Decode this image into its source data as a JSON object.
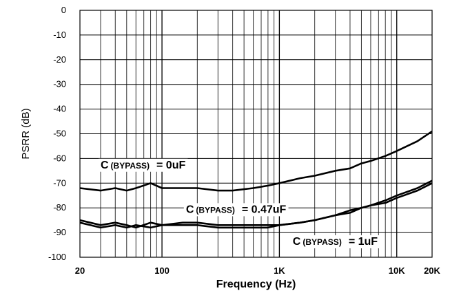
{
  "chart_data": {
    "type": "line",
    "xlabel": "Frequency (Hz)",
    "ylabel": "PSRR (dB)",
    "xscale": "log",
    "xlim": [
      20,
      20000
    ],
    "ylim": [
      -100,
      0
    ],
    "grid": true,
    "x_ticks": [
      {
        "value": 20,
        "label": "20"
      },
      {
        "value": 100,
        "label": "100"
      },
      {
        "value": 1000,
        "label": "1K"
      },
      {
        "value": 10000,
        "label": "10K"
      },
      {
        "value": 20000,
        "label": "20K"
      }
    ],
    "y_ticks": [
      0,
      -10,
      -20,
      -30,
      -40,
      -50,
      -60,
      -70,
      -80,
      -90,
      -100
    ],
    "series": [
      {
        "name": "C(BYPASS) = 0uF",
        "x": [
          20,
          30,
          40,
          50,
          60,
          80,
          100,
          150,
          200,
          300,
          400,
          600,
          800,
          1000,
          1500,
          2000,
          3000,
          4000,
          5000,
          6000,
          8000,
          10000,
          15000,
          20000
        ],
        "y": [
          -72,
          -73,
          -72,
          -73,
          -72,
          -70,
          -72,
          -72,
          -72,
          -73,
          -73,
          -72,
          -71,
          -70,
          -68,
          -67,
          -65,
          -64,
          -62,
          -61,
          -59,
          -57,
          -53,
          -49
        ]
      },
      {
        "name": "C(BYPASS) = 0.47uF",
        "x": [
          20,
          30,
          40,
          50,
          60,
          80,
          100,
          150,
          200,
          300,
          400,
          600,
          800,
          1000,
          1500,
          2000,
          3000,
          4000,
          5000,
          6000,
          8000,
          10000,
          15000,
          20000
        ],
        "y": [
          -85,
          -87,
          -86,
          -87,
          -88,
          -86,
          -87,
          -86,
          -86,
          -87,
          -87,
          -87,
          -87,
          -87,
          -86,
          -85,
          -83,
          -81,
          -80,
          -79,
          -77,
          -75,
          -72,
          -69
        ]
      },
      {
        "name": "C(BYPASS) = 1uF",
        "x": [
          20,
          30,
          40,
          50,
          60,
          80,
          100,
          150,
          200,
          300,
          400,
          600,
          800,
          1000,
          1500,
          2000,
          3000,
          4000,
          5000,
          6000,
          8000,
          10000,
          15000,
          20000
        ],
        "y": [
          -86,
          -88,
          -87,
          -88,
          -87,
          -88,
          -87,
          -87,
          -87,
          -88,
          -88,
          -88,
          -88,
          -87,
          -86,
          -85,
          -83,
          -82,
          -80,
          -79,
          -78,
          -76,
          -73,
          -70
        ]
      }
    ],
    "annotations": [
      {
        "id": "c0",
        "prefix": "C",
        "sub": "(BYPASS)",
        "suffix": "= 0uF",
        "at_x": 30,
        "at_y": -64
      },
      {
        "id": "c047",
        "prefix": "C",
        "sub": "(BYPASS)",
        "suffix": "= 0.47uF",
        "at_x": 160,
        "at_y": -82
      },
      {
        "id": "c1",
        "prefix": "C",
        "sub": "(BYPASS)",
        "suffix": "= 1uF",
        "at_x": 1300,
        "at_y": -95
      }
    ]
  }
}
